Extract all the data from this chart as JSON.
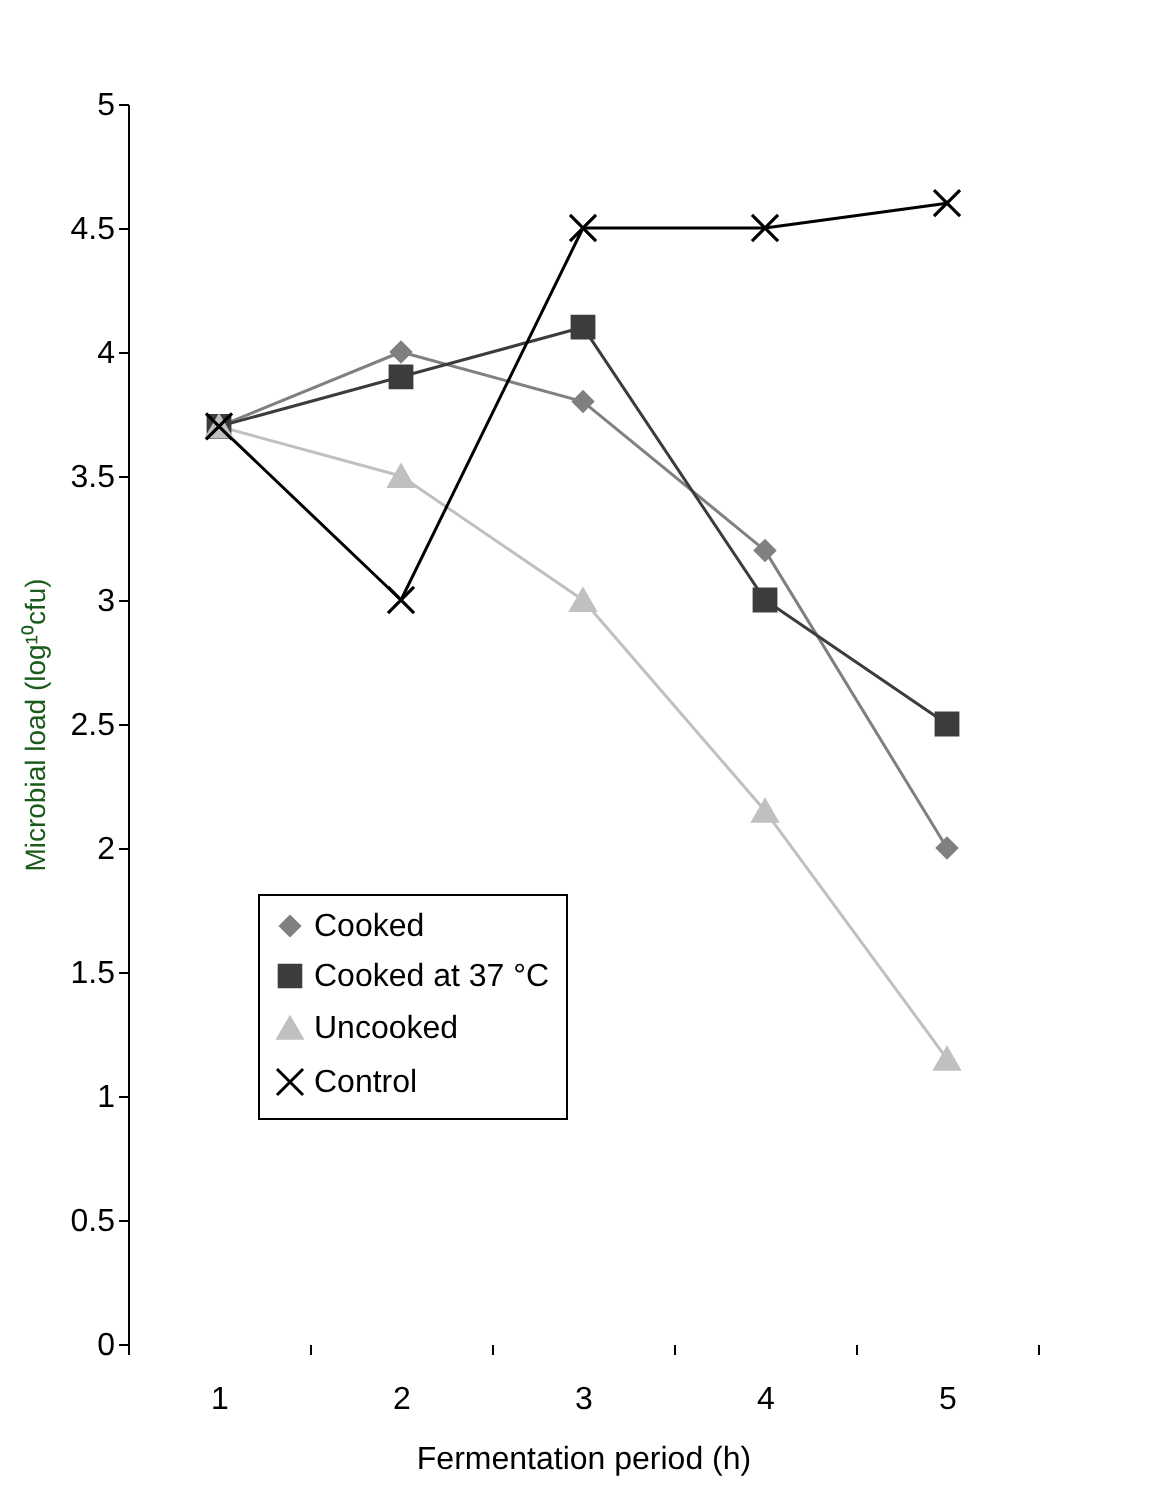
{
  "chart_data": {
    "type": "line",
    "xlabel": "Fermentation period (h)",
    "ylabel": "Microbial load (log¹⁰cfu)",
    "categories": [
      "1",
      "2",
      "3",
      "4",
      "5"
    ],
    "ylim": [
      0,
      5
    ],
    "yticks": [
      0,
      0.5,
      1,
      1.5,
      2,
      2.5,
      3,
      3.5,
      4,
      4.5,
      5
    ],
    "grid": false,
    "legend": "bottom left",
    "series": [
      {
        "name": "Cooked",
        "color": "#808080",
        "marker": "diamond",
        "values": [
          3.7,
          4.0,
          3.8,
          3.2,
          2.0
        ]
      },
      {
        "name": "Cooked at 37 °C",
        "color": "#3c3c3c",
        "marker": "square",
        "values": [
          3.7,
          3.9,
          4.1,
          3.0,
          2.5
        ]
      },
      {
        "name": "Uncooked",
        "color": "#c0c0c0",
        "marker": "triangle",
        "values": [
          3.7,
          3.5,
          3.0,
          2.15,
          1.15
        ]
      },
      {
        "name": "Control",
        "color": "#000000",
        "marker": "cross",
        "values": [
          3.7,
          3.0,
          4.5,
          4.5,
          4.6
        ]
      }
    ]
  }
}
